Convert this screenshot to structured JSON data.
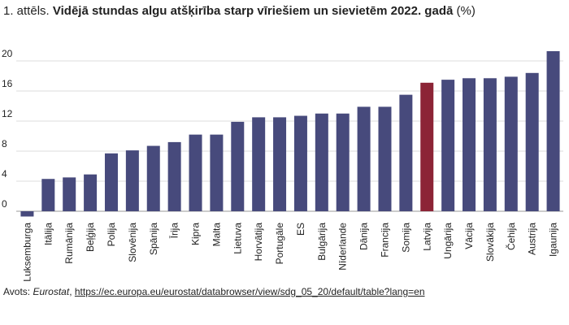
{
  "header": {
    "prefix": "1. attēls.",
    "title": "Vidējā stundas algu atšķirība starp vīriešiem un sievietēm 2022. gadā",
    "unit": "(%)"
  },
  "source": {
    "label": "Avots:",
    "name": "Eurostat",
    "separator": ",",
    "url": "https://ec.europa.eu/eurostat/databrowser/view/sdg_05_20/default/table?lang=en"
  },
  "colors": {
    "bar": "#474a7c",
    "highlight": "#8c2436",
    "grid": "#dddddd",
    "zero_line": "#9a9a9a",
    "text": "#222222"
  },
  "chart_data": {
    "type": "bar",
    "title": "Vidējā stundas algu atšķirība starp vīriešiem un sievietēm 2022. gadā",
    "ylabel": "",
    "xlabel": "",
    "ylim": [
      -1,
      21
    ],
    "yticks": [
      0,
      4,
      8,
      12,
      16,
      20
    ],
    "grid": true,
    "legend": "none",
    "highlight_category": "Latvija",
    "categories": [
      "Luksemburga",
      "Itālija",
      "Rumānija",
      "Beļģija",
      "Polija",
      "Slovēnija",
      "Spānija",
      "Īrija",
      "Kipra",
      "Malta",
      "Lietuva",
      "Horvātija",
      "Portugāle",
      "ES",
      "Bulgārija",
      "Nīderlande",
      "Dānija",
      "Francija",
      "Somija",
      "Latvija",
      "Ungārija",
      "Vācija",
      "Slovākija",
      "Čehija",
      "Austrija",
      "Igaunija"
    ],
    "values": [
      -0.7,
      4.3,
      4.5,
      4.9,
      7.7,
      8.1,
      8.7,
      9.2,
      10.2,
      10.2,
      11.9,
      12.5,
      12.5,
      12.7,
      13.0,
      13.0,
      13.9,
      13.9,
      15.5,
      17.1,
      17.5,
      17.7,
      17.7,
      17.9,
      18.4,
      21.3
    ]
  }
}
